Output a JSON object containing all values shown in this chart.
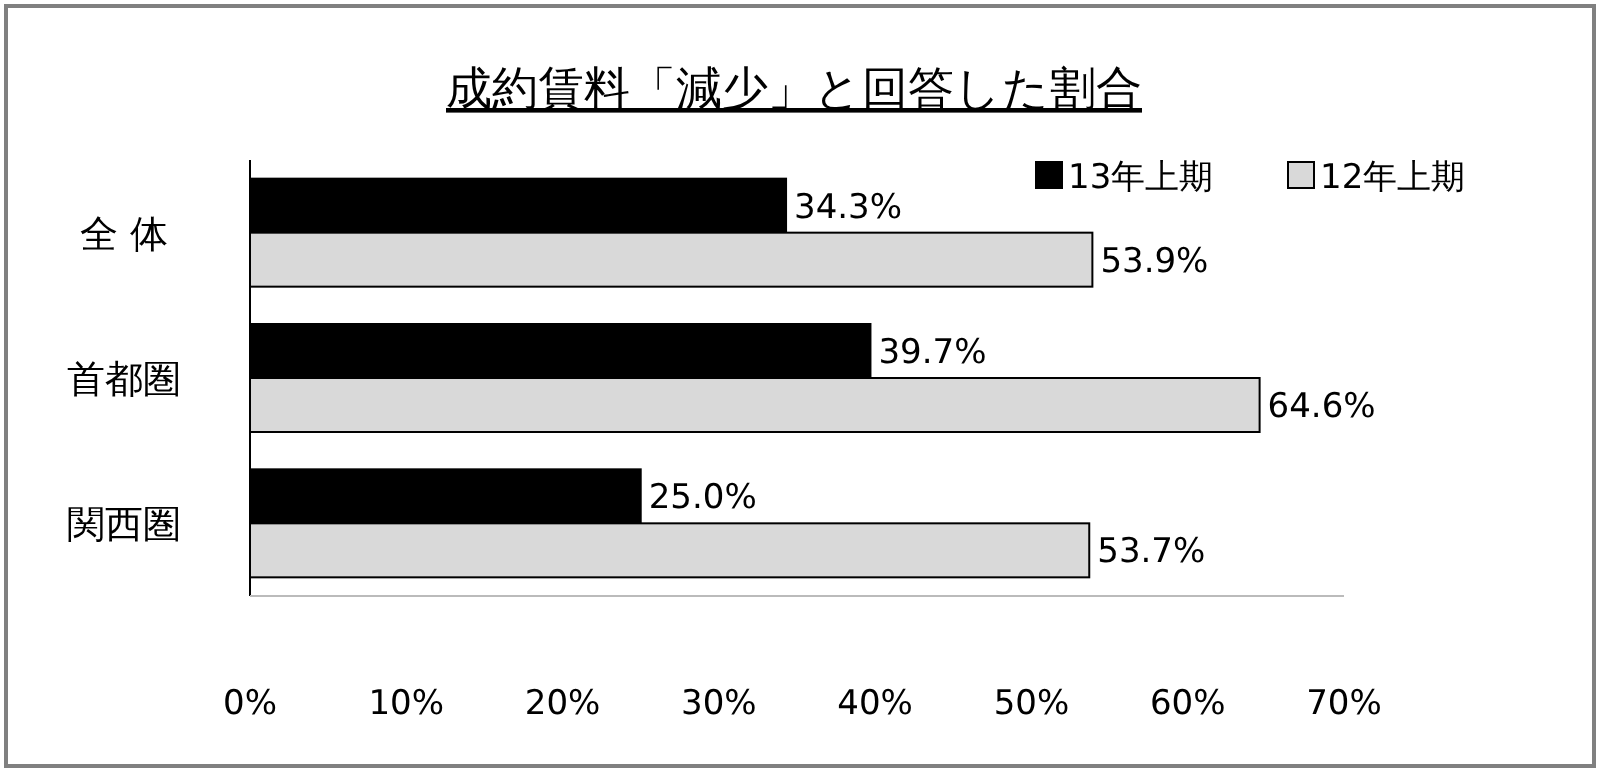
{
  "chart_data": {
    "type": "bar",
    "orientation": "horizontal",
    "title": "成約賃料「減少」と回答した割合",
    "categories": [
      "全 体",
      "首都圏",
      "関西圏"
    ],
    "series": [
      {
        "name": "13年上期",
        "color": "#000000",
        "values": [
          34.3,
          39.7,
          25.0
        ],
        "value_labels": [
          "34.3%",
          "39.7%",
          "25.0%"
        ]
      },
      {
        "name": "12年上期",
        "color": "#d9d9d9",
        "values": [
          53.9,
          64.6,
          53.7
        ],
        "value_labels": [
          "53.9%",
          "64.6%",
          "53.7%"
        ]
      }
    ],
    "xlim": [
      0,
      70
    ],
    "xticks": [
      {
        "value": 0,
        "label": "0%"
      },
      {
        "value": 10,
        "label": "10%"
      },
      {
        "value": 20,
        "label": "20%"
      },
      {
        "value": 30,
        "label": "30%"
      },
      {
        "value": 40,
        "label": "40%"
      },
      {
        "value": 50,
        "label": "50%"
      },
      {
        "value": 60,
        "label": "60%"
      },
      {
        "value": 70,
        "label": "70%"
      }
    ],
    "grid": false,
    "legend": "top right"
  }
}
